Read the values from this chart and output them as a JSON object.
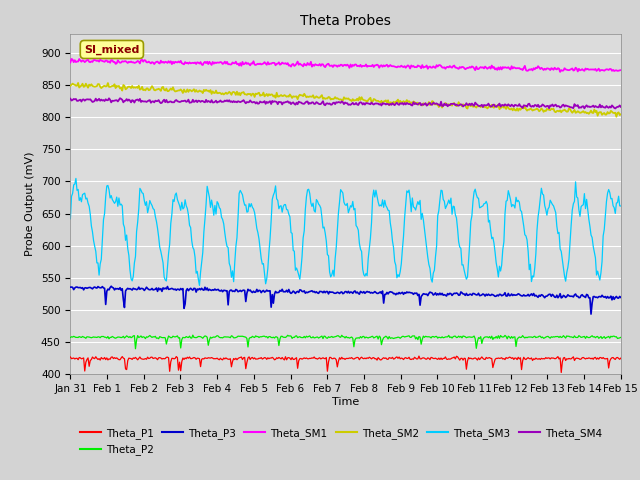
{
  "title": "Theta Probes",
  "xlabel": "Time",
  "ylabel": "Probe Output (mV)",
  "ylim": [
    400,
    930
  ],
  "yticks": [
    400,
    450,
    500,
    550,
    600,
    650,
    700,
    750,
    800,
    850,
    900
  ],
  "bg_color": "#dcdcdc",
  "fig_color": "#d3d3d3",
  "annotation_text": "SI_mixed",
  "annotation_bg": "#ffff99",
  "annotation_border": "#8b0000",
  "colors": {
    "Theta_P1": "#ff0000",
    "Theta_P2": "#00ee00",
    "Theta_P3": "#0000cc",
    "Theta_SM1": "#ff00ff",
    "Theta_SM2": "#cccc00",
    "Theta_SM3": "#00ccff",
    "Theta_SM4": "#9900bb"
  },
  "xtick_labels": [
    "Jan 31",
    "Feb 1",
    "Feb 2",
    "Feb 3",
    "Feb 4",
    "Feb 5",
    "Feb 6",
    "Feb 7",
    "Feb 8",
    "Feb 9",
    "Feb 10",
    "Feb 11",
    "Feb 12",
    "Feb 13",
    "Feb 14",
    "Feb 15"
  ],
  "n_points": 500
}
